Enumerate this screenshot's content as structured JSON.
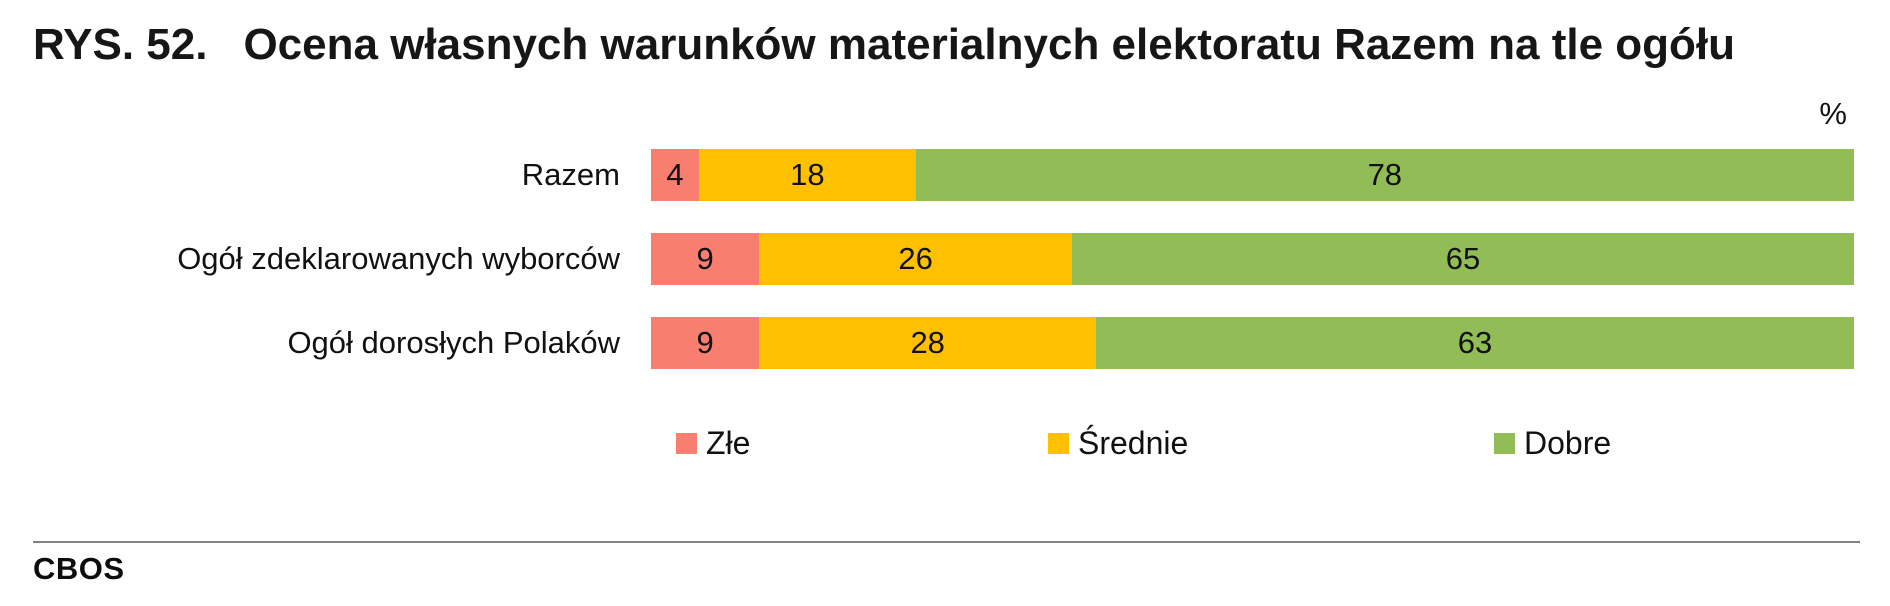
{
  "title": {
    "prefix": "RYS. 52.",
    "text": "Ocena własnych warunków materialnych elektoratu Razem na tle ogółu"
  },
  "unit_label": "%",
  "footer": {
    "brand": "CBOS"
  },
  "colors": {
    "bad": "#F87E70",
    "medium": "#FFC000",
    "good": "#92BC55",
    "divider": "#828282",
    "text": "#111111"
  },
  "chart_data": {
    "type": "bar",
    "orientation": "horizontal",
    "stacked": true,
    "unit": "%",
    "title": "Ocena własnych warunków materialnych elektoratu Razem na tle ogółu",
    "categories": [
      "Razem",
      "Ogół zdeklarowanych wyborców",
      "Ogół dorosłych Polaków"
    ],
    "series": [
      {
        "name": "Złe",
        "key": "zle",
        "color": "#F87E70",
        "values": [
          4,
          9,
          9
        ]
      },
      {
        "name": "Średnie",
        "key": "srednie",
        "color": "#FFC000",
        "values": [
          18,
          26,
          28
        ]
      },
      {
        "name": "Dobre",
        "key": "dobre",
        "color": "#92BC55",
        "values": [
          78,
          65,
          63
        ]
      }
    ],
    "xlim": [
      0,
      100
    ],
    "grid": false,
    "legend_position": "bottom",
    "value_labels": true
  }
}
